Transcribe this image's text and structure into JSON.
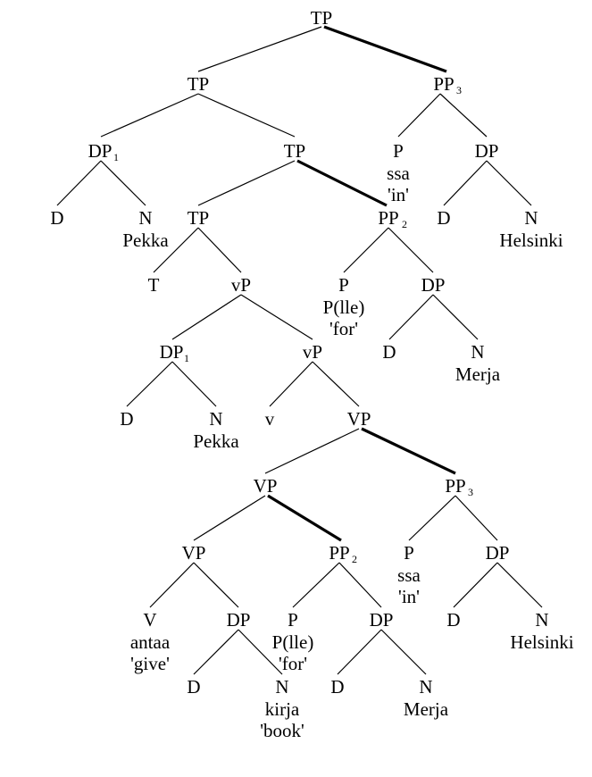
{
  "labels": {
    "tp_root": "TP",
    "tp_a": "TP",
    "pp_top": "PP",
    "pp_top_sub": "3",
    "dp1_top": "DP",
    "dp1_top_sub": "1",
    "tp_b": "TP",
    "p_ssa_top": "P",
    "ssa_top": "ssa",
    "in_top": "'in'",
    "dp_helsinki_top": "DP",
    "d_top1": "D",
    "n_top1": "N",
    "pekka_top": "Pekka",
    "tp_c": "TP",
    "pp2_top": "PP",
    "pp2_top_sub": "2",
    "d_helsinki_top": "D",
    "n_helsinki_top": "N",
    "helsinki_top": "Helsinki",
    "t": "T",
    "vp_little_top": "vP",
    "p_lle_top": "P",
    "plle_top": "P(lle)",
    "for_top": "'for'",
    "dp_merja_top": "DP",
    "dp1_mid": "DP",
    "dp1_mid_sub": "1",
    "vp_little_mid": "vP",
    "d_merja_top": "D",
    "n_merja_top": "N",
    "merja_top": "Merja",
    "d_mid": "D",
    "n_mid": "N",
    "pekka_mid": "Pekka",
    "v_little": "v",
    "vp_big_top": "VP",
    "vp_big_mid": "VP",
    "pp3_bot": "PP",
    "pp3_bot_sub": "3",
    "vp_big_low": "VP",
    "pp2_bot": "PP",
    "pp2_bot_sub": "2",
    "p_ssa_bot": "P",
    "ssa_bot": "ssa",
    "in_bot": "'in'",
    "dp_helsinki_bot": "DP",
    "v_big": "V",
    "antaa": "antaa",
    "give": "'give'",
    "dp_kirja": "DP",
    "p_lle_bot": "P",
    "plle_bot": "P(lle)",
    "for_bot": "'for'",
    "dp_merja_bot": "DP",
    "d_helsinki_bot": "D",
    "n_helsinki_bot": "N",
    "helsinki_bot": "Helsinki",
    "d_kirja": "D",
    "n_kirja": "N",
    "kirja": "kirja",
    "book": "'book'",
    "d_merja_bot": "D",
    "n_merja_bot": "N",
    "merja_bot": "Merja"
  }
}
